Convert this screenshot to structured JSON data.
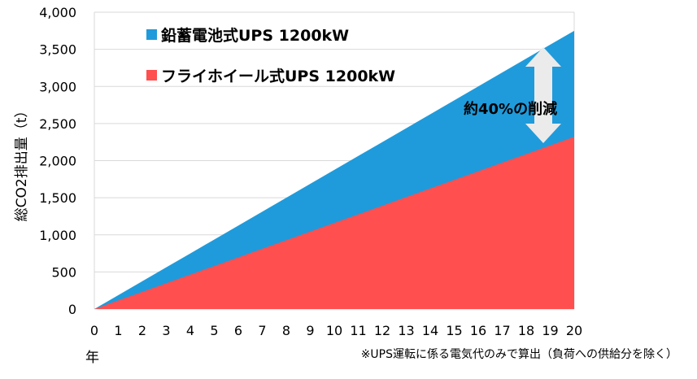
{
  "chart_data": {
    "type": "area",
    "x": [
      0,
      1,
      2,
      3,
      4,
      5,
      6,
      7,
      8,
      9,
      10,
      11,
      12,
      13,
      14,
      15,
      16,
      17,
      18,
      19,
      20
    ],
    "xlim": [
      0,
      20
    ],
    "ylim": [
      0,
      4000
    ],
    "yticks": [
      "0",
      "500",
      "1,000",
      "1,500",
      "2,000",
      "2,500",
      "3,000",
      "3,500",
      "4,000"
    ],
    "ytick_values": [
      0,
      500,
      1000,
      1500,
      2000,
      2500,
      3000,
      3500,
      4000
    ],
    "xtick_labels": [
      "0",
      "1",
      "2",
      "3",
      "4",
      "5",
      "6",
      "7",
      "8",
      "9",
      "10",
      "11",
      "12",
      "13",
      "14",
      "15",
      "16",
      "17",
      "18",
      "19",
      "20"
    ],
    "xlabel": "年",
    "ylabel": "総CO2排出量（t）",
    "grid": "horizontal",
    "legend_placement": "top-left",
    "series": [
      {
        "name": "鉛蓄電池式UPS 1200kW",
        "color": "#1F9BDB",
        "values": [
          0,
          187.5,
          375,
          562.5,
          750,
          937.5,
          1125,
          1312.5,
          1500,
          1687.5,
          1875,
          2062.5,
          2250,
          2437.5,
          2625,
          2812.5,
          3000,
          3187.5,
          3375,
          3562.5,
          3750
        ]
      },
      {
        "name": "フライホイール式UPS 1200kW",
        "color": "#FF4F4F",
        "values": [
          0,
          116,
          232,
          348,
          464,
          580,
          696,
          812,
          928,
          1044,
          1160,
          1276,
          1392,
          1508,
          1624,
          1740,
          1856,
          1972,
          2088,
          2204,
          2320
        ]
      }
    ],
    "annotation": "約40%の削減",
    "note": "※UPS運転に係る電気代のみで算出（負荷への供給分を除く）"
  }
}
